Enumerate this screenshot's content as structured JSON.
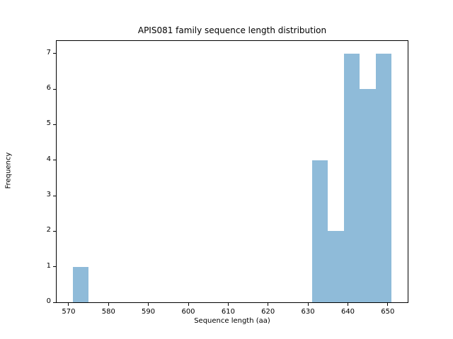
{
  "chart_data": {
    "type": "bar",
    "subtype": "histogram",
    "title": "APIS081 family sequence length distribution",
    "xlabel": "Sequence length (aa)",
    "ylabel": "Frequency",
    "bin_edges": [
      571,
      575,
      579,
      583,
      587,
      591,
      595,
      599,
      603,
      607,
      611,
      615,
      619,
      623,
      627,
      631,
      635,
      639,
      643,
      647,
      651
    ],
    "counts": [
      1,
      0,
      0,
      0,
      0,
      0,
      0,
      0,
      0,
      0,
      0,
      0,
      0,
      0,
      0,
      4,
      2,
      7,
      6,
      7
    ],
    "xticks": [
      570,
      580,
      590,
      600,
      610,
      620,
      630,
      640,
      650
    ],
    "yticks": [
      0,
      1,
      2,
      3,
      4,
      5,
      6,
      7
    ],
    "xlim": [
      567,
      655
    ],
    "ylim": [
      0,
      7.35
    ],
    "bar_color": "#8fbbd9",
    "axis_color": "#000000",
    "background_color": "#ffffff",
    "grid": false,
    "legend_position": "none"
  }
}
